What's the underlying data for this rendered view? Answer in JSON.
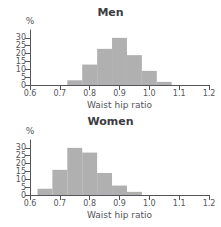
{
  "chart_data": [
    {
      "type": "bar",
      "title": "Men",
      "xlabel": "Waist hip ratio",
      "ylabel": "%",
      "x": [
        0.75,
        0.8,
        0.85,
        0.9,
        0.95,
        1.0,
        1.05
      ],
      "values": [
        3,
        13,
        23,
        30,
        19,
        9,
        2
      ],
      "color": "#b0b0b0",
      "xlim": [
        0.6,
        1.2
      ],
      "xticks": [
        0.6,
        0.7,
        0.8,
        0.9,
        {
          "value": 1.0,
          "label": "1.0"
        },
        1.1,
        1.2
      ],
      "ylim": [
        0,
        35
      ],
      "yticks": [
        0,
        5,
        10,
        15,
        20,
        25,
        30
      ],
      "grid": false
    },
    {
      "type": "bar",
      "title": "Women",
      "xlabel": "Waist hip ratio",
      "ylabel": "%",
      "x": [
        0.65,
        0.7,
        0.75,
        0.8,
        0.85,
        0.9,
        0.95
      ],
      "values": [
        4,
        16,
        30,
        27,
        14,
        6,
        2
      ],
      "color": "#b0b0b0",
      "xlim": [
        0.6,
        1.2
      ],
      "xticks": [
        0.6,
        0.7,
        0.8,
        0.9,
        {
          "value": 1.0,
          "label": "1.0"
        },
        1.1,
        1.2
      ],
      "ylim": [
        0,
        35
      ],
      "yticks": [
        0,
        5,
        10,
        15,
        20,
        25,
        30
      ],
      "grid": false
    }
  ]
}
